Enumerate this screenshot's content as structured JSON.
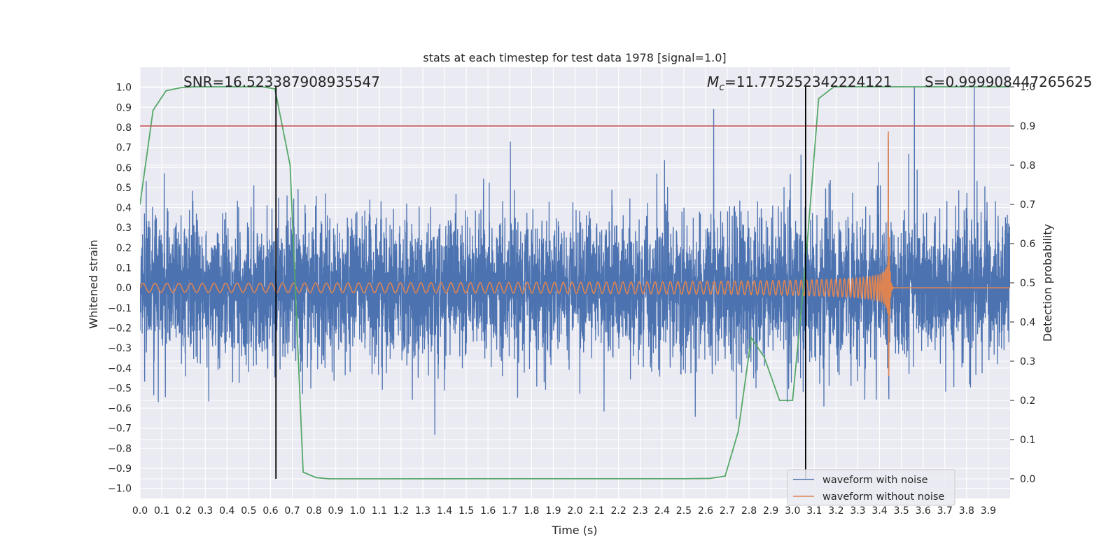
{
  "chart_data": {
    "type": "line",
    "title": "stats at each timestep for test data 1978 [signal=1.0]",
    "xlabel": "Time (s)",
    "ylabel": "Whitened strain",
    "ylabel_right": "Detection probability",
    "xlim": [
      0.0,
      4.0
    ],
    "ylim": [
      -1.05,
      1.1
    ],
    "ylim_right": [
      -0.05,
      1.05
    ],
    "x_ticks": [
      "0.0",
      "0.1",
      "0.2",
      "0.3",
      "0.4",
      "0.5",
      "0.6",
      "0.7",
      "0.8",
      "0.9",
      "1.0",
      "1.1",
      "1.2",
      "1.3",
      "1.4",
      "1.5",
      "1.6",
      "1.7",
      "1.8",
      "1.9",
      "2.0",
      "2.1",
      "2.2",
      "2.3",
      "2.4",
      "2.5",
      "2.6",
      "2.7",
      "2.8",
      "2.9",
      "3.0",
      "3.1",
      "3.2",
      "3.3",
      "3.4",
      "3.5",
      "3.6",
      "3.7",
      "3.8",
      "3.9"
    ],
    "y_ticks": [
      "1.0",
      "0.9",
      "0.8",
      "0.7",
      "0.6",
      "0.5",
      "0.4",
      "0.3",
      "0.2",
      "0.1",
      "0.0",
      "−0.1",
      "−0.2",
      "−0.3",
      "−0.4",
      "−0.5",
      "−0.6",
      "−0.7",
      "−0.8",
      "−0.9",
      "−1.0"
    ],
    "y_right_ticks": [
      "1.0",
      "0.9",
      "0.8",
      "0.7",
      "0.6",
      "0.5",
      "0.4",
      "0.3",
      "0.2",
      "0.1",
      "0.0"
    ],
    "annotations": {
      "snr": "SNR=16.523387908935547",
      "mc_symbol": "M",
      "mc_sub": "c",
      "mc_value": "=11.775252342224121",
      "s": "S=0.999908447265625"
    },
    "threshold": {
      "value": 0.9,
      "axis": "right",
      "color": "#c44e52"
    },
    "vlines": [
      0.625,
      3.06
    ],
    "chirp": {
      "amp_start": 0.025,
      "amp_peak": 0.78,
      "merger_time": 3.44,
      "f_start": 18,
      "f_end": 160
    },
    "series": [
      {
        "name": "waveform with noise",
        "color": "#4c72b0"
      },
      {
        "name": "waveform without noise",
        "color": "#dd8452"
      },
      {
        "name": "detection probability",
        "color": "#55a868",
        "axis": "right",
        "x": [
          0.0,
          0.06,
          0.12,
          0.19,
          0.25,
          0.31,
          0.37,
          0.43,
          0.5,
          0.56,
          0.62,
          0.69,
          0.75,
          0.81,
          0.87,
          0.94,
          1.0,
          1.1,
          1.5,
          2.0,
          2.5,
          2.62,
          2.69,
          2.75,
          2.81,
          2.87,
          2.94,
          3.0,
          3.06,
          3.12,
          3.19,
          3.25,
          3.5,
          3.75,
          4.0
        ],
        "y": [
          0.7,
          0.94,
          0.99,
          0.998,
          1.0,
          1.0,
          1.0,
          1.0,
          1.0,
          1.0,
          0.995,
          0.8,
          0.017,
          0.003,
          0.0,
          0.0,
          0.0,
          0.0,
          0.0002,
          0.0002,
          0.0002,
          0.001,
          0.007,
          0.12,
          0.36,
          0.31,
          0.2,
          0.2,
          0.55,
          0.97,
          1.0,
          1.0,
          1.0,
          1.0,
          1.0
        ]
      }
    ],
    "legend_position": "lower-right"
  }
}
